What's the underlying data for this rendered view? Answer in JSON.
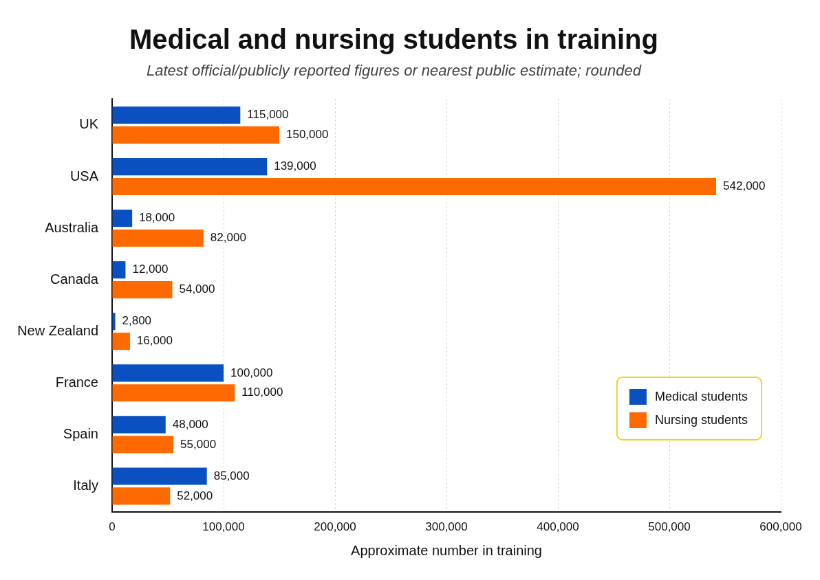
{
  "chart_data": {
    "type": "bar",
    "orientation": "horizontal",
    "title": "Medical and nursing students in training",
    "subtitle": "Latest official/publicly reported figures or nearest public estimate; rounded",
    "xlabel": "Approximate number in training",
    "categories": [
      "UK",
      "USA",
      "Australia",
      "Canada",
      "New Zealand",
      "France",
      "Spain",
      "Italy"
    ],
    "series": [
      {
        "name": "Medical students",
        "color": "#0a50c0",
        "values": [
          115000,
          139000,
          18000,
          12000,
          2800,
          100000,
          48000,
          85000
        ],
        "value_labels": [
          "115,000",
          "139,000",
          "18,000",
          "12,000",
          "2,800",
          "100,000",
          "48,000",
          "85,000"
        ]
      },
      {
        "name": "Nursing students",
        "color": "#ff6a00",
        "values": [
          150000,
          542000,
          82000,
          54000,
          16000,
          110000,
          55000,
          52000
        ],
        "value_labels": [
          "150,000",
          "542,000",
          "82,000",
          "54,000",
          "16,000",
          "110,000",
          "55,000",
          "52,000"
        ]
      }
    ],
    "xlim": [
      0,
      600000
    ],
    "xticks": [
      0,
      {
        "value": 100000,
        "label": "100,000"
      },
      {
        "value": 200000,
        "label": "200,000"
      },
      {
        "value": 300000,
        "label": "300,000"
      },
      {
        "value": 400000,
        "label": "400,000"
      },
      {
        "value": 500000,
        "label": "500,000"
      },
      {
        "value": 600000,
        "label": "600,000"
      }
    ],
    "grid": "x",
    "legend": "bottom right"
  }
}
